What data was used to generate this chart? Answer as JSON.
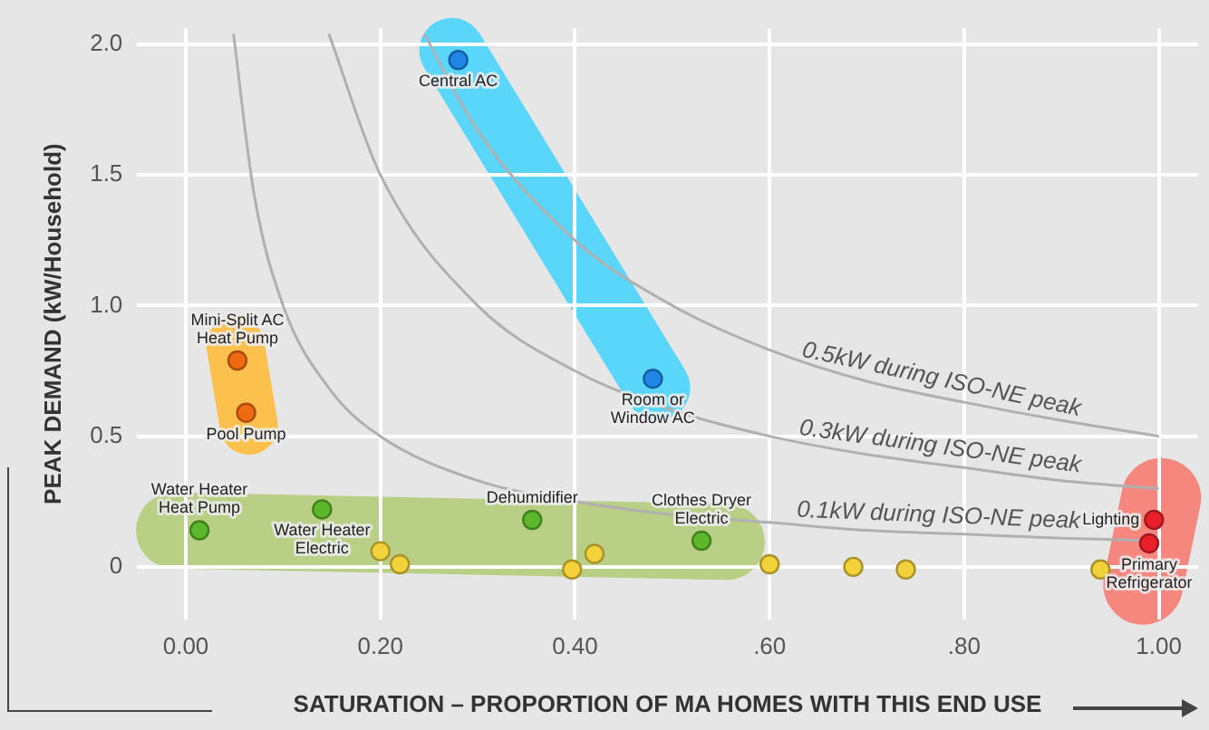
{
  "chart_data": {
    "type": "scatter",
    "xlabel": "SATURATION – PROPORTION OF MA HOMES WITH THIS END USE",
    "ylabel": "PEAK DEMAND (kW/Household)",
    "xlim": [
      -0.05,
      1.04
    ],
    "ylim": [
      -0.2,
      2.06
    ],
    "xticks": [
      {
        "value": 0,
        "label": "0.00"
      },
      {
        "value": 0.2,
        "label": "0.20"
      },
      {
        "value": 0.4,
        "label": "0.40"
      },
      {
        "value": 0.6,
        "label": ".60"
      },
      {
        "value": 0.8,
        "label": ".80"
      },
      {
        "value": 1,
        "label": "1.00"
      }
    ],
    "yticks": [
      0,
      0.5,
      {
        "value": 1,
        "label": "1.0"
      },
      1.5,
      {
        "value": 2,
        "label": "2.0"
      }
    ],
    "grid": true,
    "legend": false,
    "series": [
      {
        "marker": "circle",
        "color": "#1f86e6",
        "x": [
          0.28,
          0.48
        ],
        "values": [
          1.94,
          0.72
        ]
      },
      {
        "marker": "circle",
        "color": "#f06a10",
        "x": [
          0.053,
          0.062
        ],
        "values": [
          0.79,
          0.59
        ]
      },
      {
        "marker": "circle",
        "color": "#5cb82a",
        "x": [
          0.014,
          0.14,
          0.356,
          0.53
        ],
        "values": [
          0.14,
          0.22,
          0.18,
          0.1
        ]
      },
      {
        "marker": "circle",
        "color": "#e8202a",
        "x": [
          0.995,
          0.99
        ],
        "values": [
          0.18,
          0.09
        ]
      },
      {
        "marker": "circle",
        "color": "#f2d23a",
        "x": [
          0.2,
          0.22,
          0.397,
          0.42,
          0.6,
          0.686,
          0.74,
          0.94
        ],
        "values": [
          0.06,
          0.01,
          -0.01,
          0.05,
          0.01,
          0,
          -0.01,
          -0.01
        ]
      },
      {
        "type": "line",
        "name": "0.5kW during ISO-NE peak",
        "color": "#b0b0b0",
        "x": [
          0.245,
          0.3,
          0.4,
          0.5,
          0.6,
          0.7,
          0.8,
          0.9,
          1.0
        ],
        "values": [
          2.04,
          1.67,
          1.25,
          1.0,
          0.83,
          0.71,
          0.63,
          0.56,
          0.5
        ]
      },
      {
        "type": "line",
        "name": "0.3kW during ISO-NE peak",
        "color": "#b0b0b0",
        "x": [
          0.147,
          0.2,
          0.3,
          0.4,
          0.5,
          0.6,
          0.7,
          0.8,
          0.9,
          1.0
        ],
        "values": [
          2.04,
          1.5,
          1.0,
          0.75,
          0.6,
          0.5,
          0.43,
          0.38,
          0.33,
          0.3
        ]
      },
      {
        "type": "line",
        "name": "0.1kW during ISO-NE peak",
        "color": "#b0b0b0",
        "x": [
          0.049,
          0.07,
          0.1,
          0.15,
          0.2,
          0.3,
          0.4,
          0.5,
          0.6,
          0.7,
          0.8,
          0.9,
          1.0
        ],
        "values": [
          2.04,
          1.43,
          1.0,
          0.67,
          0.5,
          0.33,
          0.25,
          0.2,
          0.17,
          0.14,
          0.125,
          0.11,
          0.1
        ]
      }
    ],
    "annotations": [
      {
        "text": "Central AC",
        "x": 0.28,
        "y": 1.94
      },
      {
        "text": "Room or\nWindow AC",
        "x": 0.48,
        "y": 0.72
      },
      {
        "text": "Mini-Split AC\nHeat Pump",
        "x": 0.053,
        "y": 0.79
      },
      {
        "text": "Pool Pump",
        "x": 0.062,
        "y": 0.59
      },
      {
        "text": "Water Heater\nHeat Pump",
        "x": 0.014,
        "y": 0.14
      },
      {
        "text": "Water Heater\nElectric",
        "x": 0.14,
        "y": 0.22
      },
      {
        "text": "Dehumidifier",
        "x": 0.356,
        "y": 0.18
      },
      {
        "text": "Clothes Dryer\nElectric",
        "x": 0.53,
        "y": 0.1
      },
      {
        "text": "Lighting",
        "x": 0.995,
        "y": 0.18
      },
      {
        "text": "Primary\nRefrigerator",
        "x": 0.99,
        "y": 0.09
      }
    ]
  }
}
